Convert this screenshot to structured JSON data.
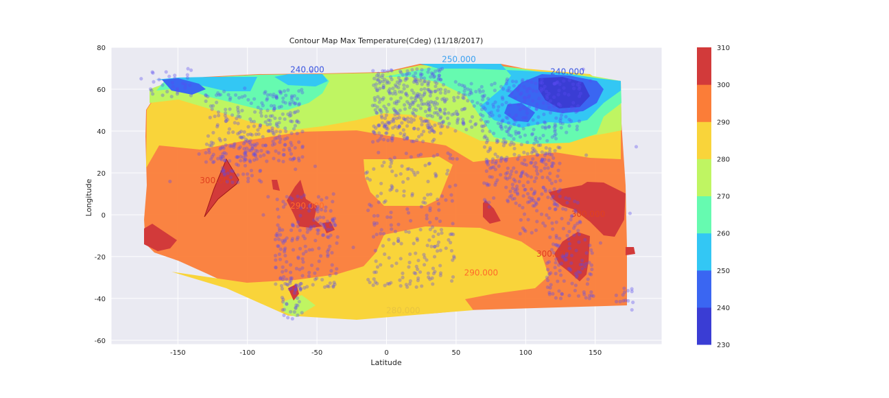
{
  "chart_data": {
    "type": "contour",
    "title": "Contour Map Max Temperature(Cdeg) (11/18/2017)",
    "xlabel": "Latitude",
    "ylabel": "Longitude",
    "xlim": [
      -198,
      198
    ],
    "ylim": [
      -62,
      80
    ],
    "xticks": [
      -150,
      -100,
      -50,
      0,
      50,
      100,
      150
    ],
    "yticks": [
      80,
      60,
      40,
      20,
      0,
      -20,
      -40,
      -60
    ],
    "grid": true,
    "colorbar": {
      "levels": [
        230,
        240,
        250,
        260,
        270,
        280,
        290,
        300,
        310
      ],
      "colors": [
        "#3a3dd4",
        "#3a66f2",
        "#33c7f4",
        "#66fab0",
        "#bff562",
        "#f9d43a",
        "#fb7d38",
        "#d23a3a"
      ]
    },
    "contour_labels": [
      {
        "text": "240.000",
        "x": -57,
        "y": 68
      },
      {
        "text": "250.000",
        "x": 52,
        "y": 73
      },
      {
        "text": "240.000",
        "x": 130,
        "y": 67
      },
      {
        "text": "300.000",
        "x": -122,
        "y": 15
      },
      {
        "text": "290.000",
        "x": -57,
        "y": 3
      },
      {
        "text": "300.000",
        "x": 145,
        "y": -1
      },
      {
        "text": "300.000",
        "x": 120,
        "y": -20
      },
      {
        "text": "290.000",
        "x": 68,
        "y": -29
      },
      {
        "text": "280.000",
        "x": 12,
        "y": -47
      }
    ],
    "scatter_color": "#5a4bf0"
  }
}
